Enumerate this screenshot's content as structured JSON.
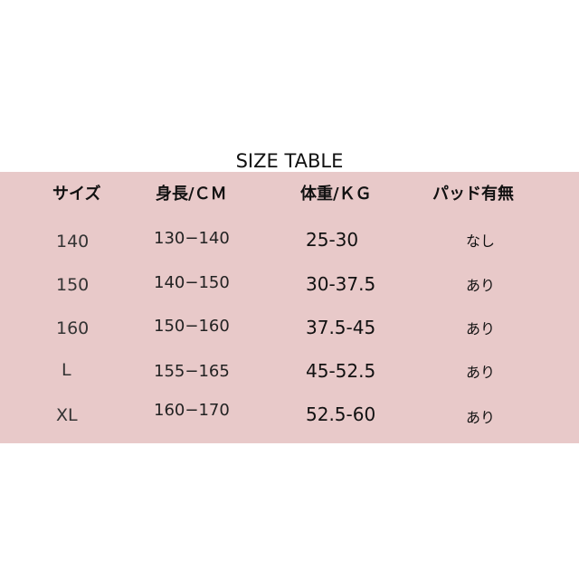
{
  "title": "SIZE TABLE",
  "colors": {
    "band": "#e8c9c9",
    "background": "#ffffff"
  },
  "table": {
    "headers": [
      "サイズ",
      "身長/ＣＭ",
      "体重/ＫＧ",
      "パッド有無"
    ],
    "rows": [
      [
        "140",
        "130−140",
        "25-30",
        "なし"
      ],
      [
        "150",
        "140−150",
        "30-37.5",
        "あり"
      ],
      [
        "160",
        "150−160",
        "37.5-45",
        "あり"
      ],
      [
        "L",
        "155−165",
        "45-52.5",
        "あり"
      ],
      [
        "XL",
        "160−170",
        "52.5-60",
        "あり"
      ]
    ]
  }
}
